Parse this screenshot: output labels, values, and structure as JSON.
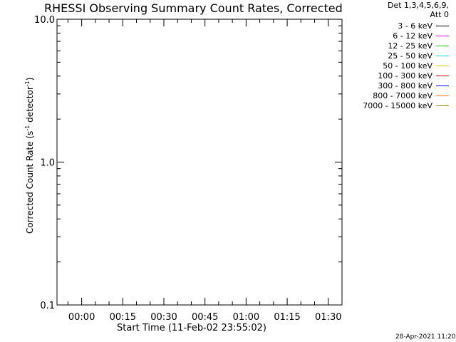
{
  "chart_data": {
    "type": "line",
    "title": "RHESSI Observing Summary Count Rates, Corrected",
    "xlabel": "Start Time (11-Feb-02 23:55:02)",
    "ylabel_main": "Corrected Count Rate (s",
    "ylabel_sup1": "-1",
    "ylabel_mid": " detector",
    "ylabel_sup2": "-1",
    "ylabel_end": ")",
    "yscale": "log",
    "ylim": [
      0.1,
      10.0
    ],
    "yticks": [
      "10.0",
      "1.0",
      "0.1"
    ],
    "xticks": [
      "00:00",
      "00:15",
      "00:30",
      "00:45",
      "01:00",
      "01:15",
      "01:30"
    ],
    "xlim_minutes": [
      -9,
      95
    ],
    "series": [],
    "legend": {
      "header1": "Det 1,3,4,5,6,9,",
      "header2": "Att 0",
      "entries": [
        {
          "label": "3 - 6 keV",
          "color": "#000000"
        },
        {
          "label": "6 - 12 keV",
          "color": "#e000e0"
        },
        {
          "label": "12 - 25 keV",
          "color": "#00d000"
        },
        {
          "label": "25 - 50 keV",
          "color": "#00e0e0"
        },
        {
          "label": "50 - 100 keV",
          "color": "#e0d000"
        },
        {
          "label": "100 - 300 keV",
          "color": "#e00000"
        },
        {
          "label": "300 - 800 keV",
          "color": "#0000e0"
        },
        {
          "label": "800 - 7000 keV",
          "color": "#ff8000"
        },
        {
          "label": "7000 - 15000 keV",
          "color": "#808000"
        }
      ]
    },
    "timestamp": "28-Apr-2021 11:20"
  }
}
